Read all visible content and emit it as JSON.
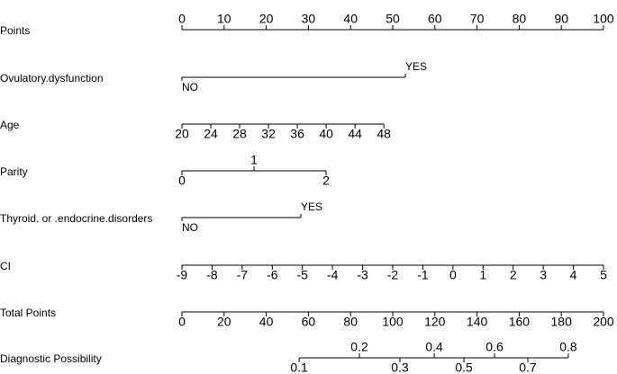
{
  "chart_data": {
    "type": "nomogram",
    "rows": [
      {
        "label": "Points",
        "kind": "points",
        "xlim": [
          0,
          100
        ],
        "points": [
          0,
          100
        ],
        "ticks": [
          0,
          10,
          20,
          30,
          40,
          50,
          60,
          70,
          80,
          90,
          100
        ]
      },
      {
        "label": "Ovulatory.dysfunction",
        "kind": "categorical",
        "categories": [
          "NO",
          "YES"
        ],
        "points": [
          0,
          53
        ]
      },
      {
        "label": "Age",
        "kind": "linear",
        "xlim": [
          20,
          48
        ],
        "points": [
          0,
          47.9
        ],
        "ticks": [
          20,
          24,
          28,
          32,
          36,
          40,
          44,
          48
        ]
      },
      {
        "label": "Parity",
        "kind": "linear",
        "xlim": [
          0,
          2
        ],
        "points": [
          0,
          34.2
        ],
        "ticks": [
          0,
          1,
          2
        ],
        "stagger": true
      },
      {
        "label": "Thyroid. or .endocrine.disorders",
        "kind": "categorical",
        "categories": [
          "NO",
          "YES"
        ],
        "points": [
          0,
          28.2
        ]
      },
      {
        "label": "CI",
        "kind": "linear",
        "xlim": [
          -9,
          5
        ],
        "points": [
          0,
          100
        ],
        "ticks": [
          -9,
          -8,
          -7,
          -6,
          -5,
          -4,
          -3,
          -2,
          -1,
          0,
          1,
          2,
          3,
          4,
          5
        ]
      },
      {
        "label": "Total Points",
        "kind": "total",
        "xlim": [
          0,
          200
        ],
        "ticks": [
          0,
          20,
          40,
          60,
          80,
          100,
          120,
          140,
          160,
          180,
          200
        ]
      },
      {
        "label": "Diagnostic Possibility",
        "kind": "probability",
        "ticks": [
          0.1,
          0.2,
          0.3,
          0.4,
          0.5,
          0.6,
          0.7,
          0.8
        ],
        "total_points": [
          55.6,
          84.2,
          103.4,
          119.7,
          133.8,
          148.3,
          164.1,
          183.3
        ],
        "stagger": true
      }
    ]
  }
}
